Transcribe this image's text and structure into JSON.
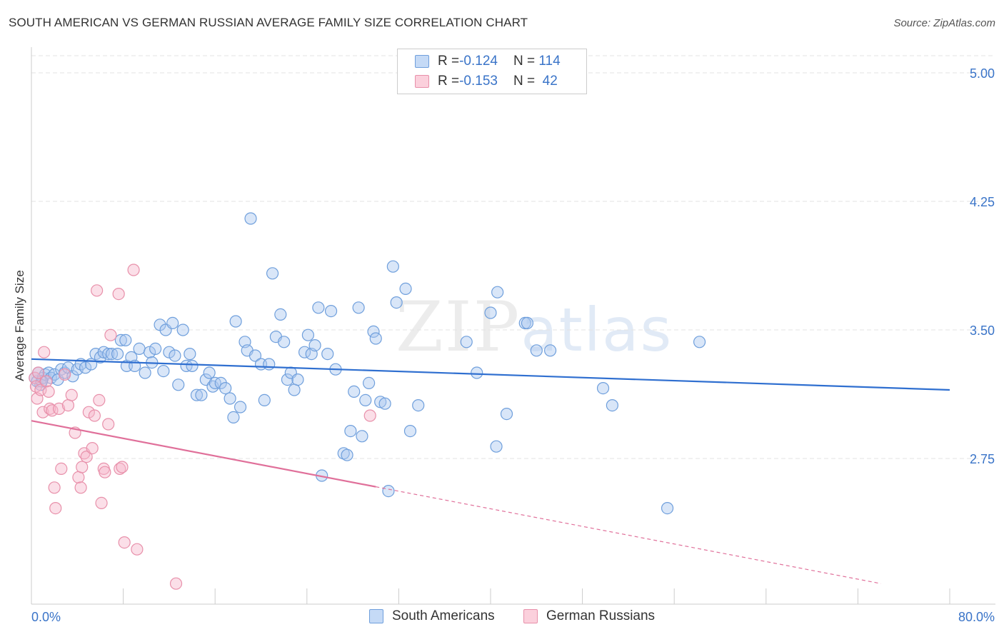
{
  "title": "SOUTH AMERICAN VS GERMAN RUSSIAN AVERAGE FAMILY SIZE CORRELATION CHART",
  "source": "Source: ZipAtlas.com",
  "watermark": {
    "part1": "ZIP",
    "part2": "atlas"
  },
  "legend": {
    "rows": [
      {
        "r_label": "R = ",
        "r_value": "-0.124",
        "n_label": "N = ",
        "n_value": "114"
      },
      {
        "r_label": "R = ",
        "r_value": "-0.153",
        "n_label": "N = ",
        "n_value": " 42"
      }
    ]
  },
  "colors": {
    "blue_fill": "#aac8f0",
    "blue_stroke": "#6f9fdc",
    "blue_line": "#2f6fd0",
    "pink_fill": "#f7b8cb",
    "pink_stroke": "#e890aa",
    "pink_line": "#e0709a",
    "tick_text": "#3a74c8",
    "grid": "#e3e3e3"
  },
  "chart_data": {
    "type": "scatter",
    "xlabel": "",
    "ylabel": "Average Family Size",
    "xlim": [
      0,
      80
    ],
    "ylim": [
      2.0,
      5.1
    ],
    "x_tick_labels": [
      {
        "value": 0,
        "label": "0.0%"
      },
      {
        "value": 80,
        "label": "80.0%"
      }
    ],
    "y_ticks": [
      {
        "value": 5.0,
        "label": "5.00"
      },
      {
        "value": 4.25,
        "label": "4.25"
      },
      {
        "value": 3.5,
        "label": "3.50"
      },
      {
        "value": 2.75,
        "label": "2.75"
      }
    ],
    "x_minor_ticks": [
      0,
      8,
      16,
      24,
      32,
      40,
      48,
      56,
      64,
      72,
      80
    ],
    "grid": true,
    "legend_position": "top-center",
    "series": [
      {
        "name": "South Americans",
        "color": "blue",
        "trend": {
          "x": [
            0,
            80
          ],
          "y": [
            3.33,
            3.15
          ],
          "dashed_from": null
        },
        "points": [
          [
            0.3,
            3.22
          ],
          [
            0.5,
            3.2
          ],
          [
            0.6,
            3.25
          ],
          [
            0.8,
            3.18
          ],
          [
            1.0,
            3.22
          ],
          [
            1.2,
            3.24
          ],
          [
            1.5,
            3.25
          ],
          [
            1.7,
            3.22
          ],
          [
            2.0,
            3.24
          ],
          [
            2.3,
            3.21
          ],
          [
            2.6,
            3.27
          ],
          [
            2.9,
            3.25
          ],
          [
            3.2,
            3.28
          ],
          [
            3.6,
            3.23
          ],
          [
            4.0,
            3.27
          ],
          [
            4.3,
            3.3
          ],
          [
            4.7,
            3.28
          ],
          [
            5.2,
            3.3
          ],
          [
            5.6,
            3.36
          ],
          [
            6.0,
            3.34
          ],
          [
            6.3,
            3.37
          ],
          [
            6.7,
            3.36
          ],
          [
            7.0,
            3.36
          ],
          [
            7.5,
            3.36
          ],
          [
            7.8,
            3.44
          ],
          [
            8.2,
            3.44
          ],
          [
            8.3,
            3.29
          ],
          [
            8.7,
            3.34
          ],
          [
            9.0,
            3.29
          ],
          [
            9.4,
            3.39
          ],
          [
            9.9,
            3.25
          ],
          [
            10.3,
            3.37
          ],
          [
            10.5,
            3.31
          ],
          [
            10.8,
            3.39
          ],
          [
            11.2,
            3.53
          ],
          [
            11.5,
            3.26
          ],
          [
            11.7,
            3.5
          ],
          [
            12.0,
            3.37
          ],
          [
            12.3,
            3.54
          ],
          [
            12.5,
            3.35
          ],
          [
            12.8,
            3.18
          ],
          [
            13.2,
            3.5
          ],
          [
            13.5,
            3.29
          ],
          [
            13.8,
            3.36
          ],
          [
            14.0,
            3.29
          ],
          [
            14.4,
            3.12
          ],
          [
            14.8,
            3.12
          ],
          [
            15.2,
            3.21
          ],
          [
            15.5,
            3.25
          ],
          [
            15.8,
            3.17
          ],
          [
            16.0,
            3.19
          ],
          [
            16.5,
            3.19
          ],
          [
            16.9,
            3.16
          ],
          [
            17.3,
            3.1
          ],
          [
            17.6,
            2.99
          ],
          [
            17.8,
            3.55
          ],
          [
            18.2,
            3.05
          ],
          [
            18.6,
            3.43
          ],
          [
            18.8,
            3.38
          ],
          [
            19.1,
            4.15
          ],
          [
            19.5,
            3.35
          ],
          [
            20.0,
            3.3
          ],
          [
            20.3,
            3.09
          ],
          [
            20.7,
            3.3
          ],
          [
            21.0,
            3.83
          ],
          [
            21.3,
            3.46
          ],
          [
            21.7,
            3.59
          ],
          [
            22.0,
            3.43
          ],
          [
            22.3,
            3.21
          ],
          [
            22.6,
            3.25
          ],
          [
            22.9,
            3.15
          ],
          [
            23.2,
            3.21
          ],
          [
            23.8,
            3.37
          ],
          [
            24.1,
            3.47
          ],
          [
            24.4,
            3.36
          ],
          [
            24.7,
            3.41
          ],
          [
            25.0,
            3.63
          ],
          [
            25.3,
            2.65
          ],
          [
            25.8,
            3.36
          ],
          [
            26.1,
            3.61
          ],
          [
            26.5,
            3.27
          ],
          [
            27.2,
            2.78
          ],
          [
            27.5,
            2.77
          ],
          [
            27.8,
            2.91
          ],
          [
            28.1,
            3.14
          ],
          [
            28.5,
            3.63
          ],
          [
            28.8,
            2.88
          ],
          [
            29.1,
            3.09
          ],
          [
            29.4,
            3.19
          ],
          [
            29.8,
            3.49
          ],
          [
            30.0,
            3.45
          ],
          [
            30.4,
            3.08
          ],
          [
            30.8,
            3.07
          ],
          [
            31.1,
            2.56
          ],
          [
            31.5,
            3.87
          ],
          [
            31.8,
            3.66
          ],
          [
            32.6,
            3.74
          ],
          [
            33.0,
            2.91
          ],
          [
            33.7,
            3.06
          ],
          [
            37.9,
            3.43
          ],
          [
            38.8,
            3.25
          ],
          [
            40.0,
            3.6
          ],
          [
            40.6,
            3.72
          ],
          [
            40.5,
            2.82
          ],
          [
            41.4,
            3.01
          ],
          [
            43.0,
            3.54
          ],
          [
            43.2,
            3.54
          ],
          [
            44.0,
            3.38
          ],
          [
            45.2,
            3.38
          ],
          [
            49.8,
            3.16
          ],
          [
            50.6,
            3.06
          ],
          [
            55.4,
            2.46
          ],
          [
            58.2,
            3.43
          ],
          [
            0.9,
            3.2
          ]
        ]
      },
      {
        "name": "German Russians",
        "color": "pink",
        "trend": {
          "x": [
            0,
            74
          ],
          "y": [
            2.97,
            2.02
          ],
          "dashed_from": 30
        },
        "points": [
          [
            0.3,
            3.22
          ],
          [
            0.4,
            3.17
          ],
          [
            0.5,
            3.1
          ],
          [
            0.6,
            3.25
          ],
          [
            0.8,
            3.15
          ],
          [
            1.0,
            3.02
          ],
          [
            1.1,
            3.37
          ],
          [
            1.3,
            3.2
          ],
          [
            1.5,
            3.14
          ],
          [
            1.6,
            3.04
          ],
          [
            1.8,
            3.03
          ],
          [
            2.0,
            2.58
          ],
          [
            2.1,
            2.46
          ],
          [
            2.4,
            3.04
          ],
          [
            2.6,
            2.69
          ],
          [
            2.9,
            3.24
          ],
          [
            3.2,
            3.06
          ],
          [
            3.5,
            3.12
          ],
          [
            3.8,
            2.9
          ],
          [
            4.1,
            2.64
          ],
          [
            4.3,
            2.58
          ],
          [
            4.4,
            2.7
          ],
          [
            4.6,
            2.78
          ],
          [
            4.8,
            2.76
          ],
          [
            5.0,
            3.02
          ],
          [
            5.3,
            2.81
          ],
          [
            5.5,
            3.0
          ],
          [
            5.7,
            3.73
          ],
          [
            5.9,
            3.09
          ],
          [
            6.1,
            2.49
          ],
          [
            6.3,
            2.69
          ],
          [
            6.4,
            2.67
          ],
          [
            6.7,
            2.95
          ],
          [
            6.9,
            3.47
          ],
          [
            7.6,
            3.71
          ],
          [
            7.7,
            2.69
          ],
          [
            7.9,
            2.7
          ],
          [
            8.1,
            2.26
          ],
          [
            8.9,
            3.85
          ],
          [
            9.2,
            2.22
          ],
          [
            12.6,
            2.02
          ],
          [
            29.5,
            3.0
          ]
        ]
      }
    ],
    "bottom_legend": [
      "South Americans",
      "German Russians"
    ]
  }
}
